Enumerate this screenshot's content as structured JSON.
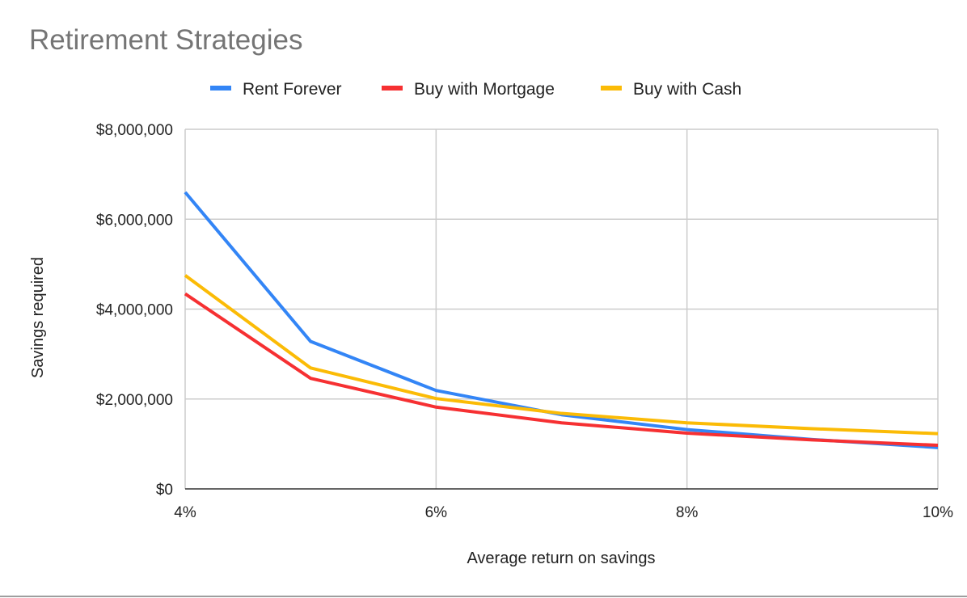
{
  "chart_data": {
    "type": "line",
    "title": "Retirement Strategies",
    "xlabel": "Average return on savings",
    "ylabel": "Savings required",
    "x": [
      4,
      5,
      6,
      7,
      8,
      9,
      10
    ],
    "xlim": [
      4,
      10
    ],
    "ylim": [
      0,
      8000000
    ],
    "x_ticks": [
      4,
      6,
      8,
      10
    ],
    "x_tick_labels": [
      "4%",
      "6%",
      "8%",
      "10%"
    ],
    "y_ticks": [
      0,
      2000000,
      4000000,
      6000000,
      8000000
    ],
    "y_tick_labels": [
      "$0",
      "$2,000,000",
      "$4,000,000",
      "$6,000,000",
      "$8,000,000"
    ],
    "grid": true,
    "legend_position": "top",
    "series": [
      {
        "name": "Rent Forever",
        "color": "#3385f6",
        "values": [
          6600000,
          3280000,
          2190000,
          1650000,
          1320000,
          1100000,
          920000
        ]
      },
      {
        "name": "Buy with Mortgage",
        "color": "#f63032",
        "values": [
          4340000,
          2460000,
          1820000,
          1470000,
          1240000,
          1090000,
          970000
        ]
      },
      {
        "name": "Buy with Cash",
        "color": "#fbbb06",
        "values": [
          4750000,
          2690000,
          2010000,
          1680000,
          1470000,
          1340000,
          1230000
        ]
      }
    ]
  }
}
